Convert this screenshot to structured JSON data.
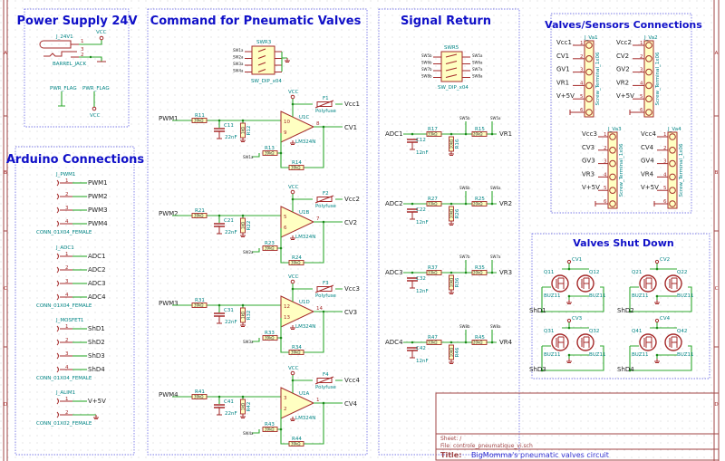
{
  "colors": {
    "wire": "#2fa82f",
    "component": "#a52a2a",
    "component_fill": "#ffffc2",
    "section_title": "#1010c8",
    "reference": "#008484",
    "frame": "#a04545",
    "junction": "#1a8a1a"
  },
  "frame": {
    "zones": [
      "A",
      "B",
      "C",
      "D"
    ]
  },
  "power_supply": {
    "title": "Power Supply 24V",
    "jack_ref": "J_24V1",
    "jack_value": "BARREL_JACK",
    "pins": [
      "1",
      "3",
      "2"
    ],
    "vcc": "VCC",
    "flag1": "PWR_FLAG",
    "flag2": "PWR_FLAG",
    "vcc2": "VCC"
  },
  "arduino": {
    "title": "Arduino Connections",
    "connectors": [
      {
        "ref": "J_PWM1",
        "value": "CONN_01X04_FEMALE",
        "nets": [
          "PWM1",
          "PWM2",
          "PWM3",
          "PWM4"
        ]
      },
      {
        "ref": "J_ADC1",
        "value": "CONN_01X04_FEMALE",
        "nets": [
          "ADC1",
          "ADC2",
          "ADC3",
          "ADC4"
        ]
      },
      {
        "ref": "J_MOSFET1",
        "value": "CONN_01X04_FEMALE",
        "nets": [
          "ShD1",
          "ShD2",
          "ShD3",
          "ShD4"
        ]
      },
      {
        "ref": "J_ALIM1",
        "value": "CONN_01X02_FEMALE",
        "nets": [
          "V+5V",
          ""
        ]
      }
    ]
  },
  "command": {
    "title": "Command for Pneumatic Valves",
    "dip": {
      "ref": "SWR3",
      "value": "SW_DIP_x04",
      "labels": [
        "SW1a",
        "SW2a",
        "SW3a",
        "SW4a"
      ]
    },
    "channels": [
      {
        "input": "PWM1",
        "r_in": "R11",
        "r_in_val": "39kΩ",
        "cap": "C11",
        "cap_val": "22nF",
        "r_sh": "R12",
        "r_sh_val": "1kΩ",
        "opamp": "U1C",
        "opamp_val": "LM324N",
        "pin_p": "10",
        "pin_n": "9",
        "pin_out": "8",
        "vcc": "VCC",
        "fuse": "F1",
        "fuse_val": "Polyfuse",
        "vout": "Vcc1",
        "output": "CV1",
        "r_g": "R13",
        "r_g_val": "39kΩ",
        "r_f": "R14",
        "r_f_val": "39kΩ",
        "sw": "SW1a"
      },
      {
        "input": "PWM2",
        "r_in": "R21",
        "r_in_val": "39kΩ",
        "cap": "C21",
        "cap_val": "22nF",
        "r_sh": "R22",
        "r_sh_val": "1kΩ",
        "opamp": "U1B",
        "opamp_val": "LM324N",
        "pin_p": "5",
        "pin_n": "6",
        "pin_out": "7",
        "vcc": "VCC",
        "fuse": "F2",
        "fuse_val": "Polyfuse",
        "vout": "Vcc2",
        "output": "CV2",
        "r_g": "R23",
        "r_g_val": "39kΩ",
        "r_f": "R24",
        "r_f_val": "39kΩ",
        "sw": "SW2a"
      },
      {
        "input": "PWM3",
        "r_in": "R31",
        "r_in_val": "39kΩ",
        "cap": "C31",
        "cap_val": "22nF",
        "r_sh": "R32",
        "r_sh_val": "1kΩ",
        "opamp": "U1D",
        "opamp_val": "LM324N",
        "pin_p": "12",
        "pin_n": "13",
        "pin_out": "14",
        "vcc": "VCC",
        "fuse": "F3",
        "fuse_val": "Polyfuse",
        "vout": "Vcc3",
        "output": "CV3",
        "r_g": "R33",
        "r_g_val": "39kΩ",
        "r_f": "R34",
        "r_f_val": "39kΩ",
        "sw": "SW3a"
      },
      {
        "input": "PWM4",
        "r_in": "R41",
        "r_in_val": "39kΩ",
        "cap": "C41",
        "cap_val": "22nF",
        "r_sh": "R42",
        "r_sh_val": "1kΩ",
        "opamp": "U1A",
        "opamp_val": "LM324N",
        "pin_p": "3",
        "pin_n": "2",
        "pin_out": "1",
        "vcc": "VCC",
        "fuse": "F4",
        "fuse_val": "Polyfuse",
        "vout": "Vcc4",
        "output": "CV4",
        "r_g": "R43",
        "r_g_val": "39kΩ",
        "r_f": "R44",
        "r_f_val": "39kΩ",
        "sw": "SW4a"
      }
    ]
  },
  "signal_return": {
    "title": "Signal Return",
    "dip": {
      "ref": "SWR5",
      "value": "SW_DIP_x04",
      "labels_left": [
        "SW5b",
        "SW6b",
        "SW7b",
        "SW8b"
      ],
      "labels_right": [
        "SW5a",
        "SW6a",
        "SW7a",
        "SW8a"
      ]
    },
    "channels": [
      {
        "adc": "ADC1",
        "cap": "C12",
        "cap_val": "12nF",
        "r1": "R17",
        "r1_val": "33kΩ",
        "r2": "R16",
        "r2_val": "10kΩ",
        "r3": "R15",
        "r3_val": "20kΩ",
        "sw1": "SW5b",
        "sw2": "SW5a",
        "vr": "VR1"
      },
      {
        "adc": "ADC2",
        "cap": "C22",
        "cap_val": "12nF",
        "r1": "R27",
        "r1_val": "33kΩ",
        "r2": "R26",
        "r2_val": "10kΩ",
        "r3": "R25",
        "r3_val": "20kΩ",
        "sw1": "SW6b",
        "sw2": "SW6a",
        "vr": "VR2"
      },
      {
        "adc": "ADC3",
        "cap": "C32",
        "cap_val": "12nF",
        "r1": "R37",
        "r1_val": "33kΩ",
        "r2": "R36",
        "r2_val": "10kΩ",
        "r3": "R35",
        "r3_val": "20kΩ",
        "sw1": "SW7b",
        "sw2": "SW7a",
        "vr": "VR3"
      },
      {
        "adc": "ADC4",
        "cap": "C42",
        "cap_val": "12nF",
        "r1": "R47",
        "r1_val": "33kΩ",
        "r2": "R46",
        "r2_val": "10kΩ",
        "r3": "R45",
        "r3_val": "20kΩ",
        "sw1": "SW8b",
        "sw2": "SW8a",
        "vr": "VR4"
      }
    ]
  },
  "valves_sensors": {
    "title": "Valves/Sensors Connections",
    "connectors": [
      {
        "ref": "J_Va1",
        "value": "Screw_Terminal_1x06",
        "nets": [
          "Vcc1",
          "CV1",
          "GV1",
          "VR1",
          "V+5V",
          ""
        ]
      },
      {
        "ref": "J_Va2",
        "value": "Screw_Terminal_1x06",
        "nets": [
          "Vcc2",
          "CV2",
          "GV2",
          "VR2",
          "V+5V",
          ""
        ]
      },
      {
        "ref": "J_Va3",
        "value": "Screw_Terminal_1x06",
        "nets": [
          "Vcc3",
          "CV3",
          "GV3",
          "VR3",
          "V+5V",
          ""
        ]
      },
      {
        "ref": "J_Va4",
        "value": "Screw_Terminal_1x06",
        "nets": [
          "Vcc4",
          "CV4",
          "GV4",
          "VR4",
          "V+5V",
          ""
        ]
      }
    ]
  },
  "shutdown": {
    "title": "Valves Shut Down",
    "groups": [
      {
        "net": "CV1",
        "gate": "ShD1",
        "q1": "Q11",
        "q2": "Q12",
        "value": "BUZ11"
      },
      {
        "net": "CV2",
        "gate": "ShD2",
        "q1": "Q21",
        "q2": "Q22",
        "value": "BUZ11"
      },
      {
        "net": "CV3",
        "gate": "ShD3",
        "q1": "Q31",
        "q2": "Q32",
        "value": "BUZ11"
      },
      {
        "net": "CV4",
        "gate": "ShD4",
        "q1": "Q41",
        "q2": "Q42",
        "value": "BUZ11"
      }
    ]
  },
  "title_block": {
    "sheet": "Sheet: /",
    "file": "File: controle_pneumatique_vi.sch",
    "title_label": "Title:",
    "title": "BigMomma's pneumatic valves circuit"
  }
}
